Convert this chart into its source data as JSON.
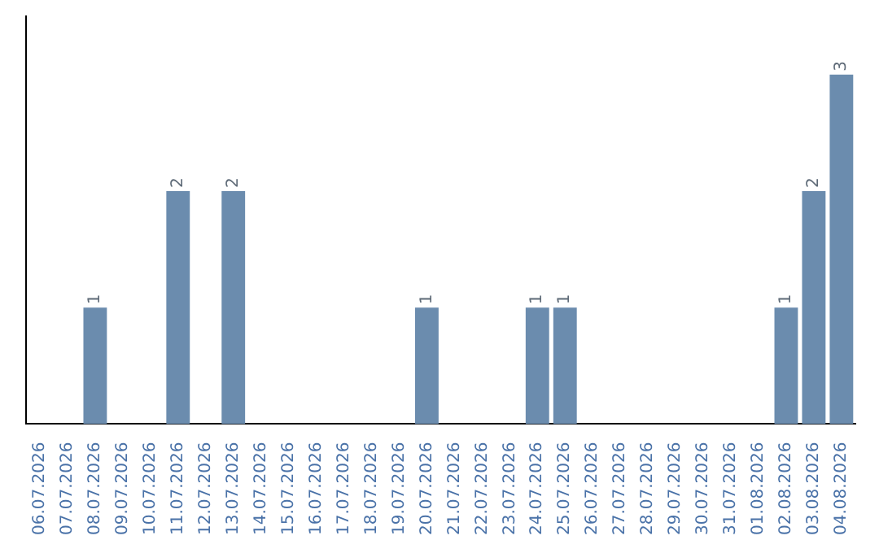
{
  "chart_data": {
    "type": "bar",
    "categories": [
      "06.07.2026",
      "07.07.2026",
      "08.07.2026",
      "09.07.2026",
      "10.07.2026",
      "11.07.2026",
      "12.07.2026",
      "13.07.2026",
      "14.07.2026",
      "15.07.2026",
      "16.07.2026",
      "17.07.2026",
      "18.07.2026",
      "19.07.2026",
      "20.07.2026",
      "21.07.2026",
      "22.07.2026",
      "23.07.2026",
      "24.07.2026",
      "25.07.2026",
      "26.07.2026",
      "27.07.2026",
      "28.07.2026",
      "29.07.2026",
      "30.07.2026",
      "31.07.2026",
      "01.08.2026",
      "02.08.2026",
      "03.08.2026",
      "04.08.2026"
    ],
    "values": [
      0,
      0,
      1,
      0,
      0,
      2,
      0,
      2,
      0,
      0,
      0,
      0,
      0,
      0,
      1,
      0,
      0,
      0,
      1,
      1,
      0,
      0,
      0,
      0,
      0,
      0,
      0,
      1,
      2,
      3
    ],
    "value_labels": [
      null,
      null,
      "1",
      null,
      null,
      "2",
      null,
      "2",
      null,
      null,
      null,
      null,
      null,
      null,
      "1",
      null,
      null,
      null,
      "1",
      "1",
      null,
      null,
      null,
      null,
      null,
      null,
      null,
      "1",
      "2",
      "3"
    ],
    "color": "#6b8cae",
    "grid": false,
    "legend": false
  }
}
